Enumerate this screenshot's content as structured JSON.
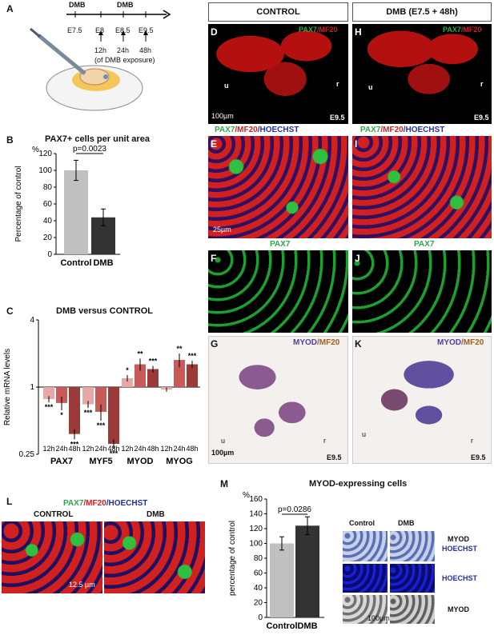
{
  "panel_letters": [
    "A",
    "B",
    "C",
    "D",
    "E",
    "F",
    "G",
    "H",
    "I",
    "J",
    "K",
    "L",
    "M"
  ],
  "timeline": {
    "top": [
      "DMB",
      "DMB"
    ],
    "stages": [
      "E7.5",
      "E8",
      "E8.5",
      "E9.5"
    ],
    "hours": [
      "12h",
      "24h",
      "48h"
    ],
    "note": "(of DMB exposure)"
  },
  "headers": {
    "control": "CONTROL",
    "dmb": "DMB (E7.5 + 48h)"
  },
  "micro": {
    "pax7": "PAX7",
    "mf20": "/MF20",
    "hoechst": "/HOECHST",
    "myod": "MYOD",
    "mf20b": "/MF20",
    "u": "u",
    "r": "r",
    "e95": "E9.5",
    "scale100": "100µm",
    "scale25": "25µm",
    "scale125": "12.5 µm",
    "scale100b": "100µm"
  },
  "panel_L": {
    "control": "CONTROL",
    "dmb": "DMB"
  },
  "panel_M": {
    "title": "MYOD-expressing cells",
    "col1": "Control",
    "col2": "DMB",
    "row1a": "MYOD",
    "row1b": "HOECHST",
    "row2": "HOECHST",
    "row3": "MYOD"
  },
  "colors": {
    "control_bar": "#c0c0c0",
    "dmb_bar": "#333333",
    "pax7": "#2ea84a",
    "mf20": "#d42020",
    "hoechst": "#2030a0"
  },
  "chart_data": [
    {
      "type": "bar",
      "title": "PAX7+ cells per unit area",
      "ylabel": "Percentage of control",
      "yunit": "%",
      "categories": [
        "Control",
        "DMB"
      ],
      "values": [
        100,
        44
      ],
      "errors": [
        12,
        10
      ],
      "ylim": [
        0,
        120
      ],
      "yticks": [
        0,
        20,
        40,
        60,
        80,
        100,
        120
      ],
      "annotation": "p=0.0023"
    },
    {
      "type": "bar",
      "title": "DMB versus CONTROL",
      "ylabel": "Relative mRNA levels",
      "yscale": "log",
      "ylim": [
        0.25,
        4
      ],
      "yticks": [
        0.25,
        1,
        4
      ],
      "groups": [
        "PAX7",
        "MYF5",
        "MYOD",
        "MYOG"
      ],
      "timepoints": [
        "12h",
        "24h",
        "48h"
      ],
      "values": [
        [
          0.78,
          0.72,
          0.38
        ],
        [
          0.7,
          0.6,
          0.31
        ],
        [
          1.2,
          1.6,
          1.45
        ],
        [
          0.95,
          1.75,
          1.6
        ]
      ],
      "errors": [
        [
          0.05,
          0.1,
          0.04
        ],
        [
          0.05,
          0.1,
          0.03
        ],
        [
          0.08,
          0.2,
          0.1
        ],
        [
          0.04,
          0.25,
          0.12
        ]
      ],
      "significance": [
        [
          "***",
          "*",
          "***"
        ],
        [
          "***",
          "***",
          "***"
        ],
        [
          "*",
          "**",
          "***"
        ],
        [
          "",
          "**",
          "***"
        ]
      ],
      "colors": [
        "#e8a8a8",
        "#c85a5a",
        "#9c3a3a"
      ]
    },
    {
      "type": "bar",
      "ylabel": "percentage of control",
      "yunit": "%",
      "categories": [
        "Control",
        "DMB"
      ],
      "values": [
        100,
        124
      ],
      "errors": [
        9,
        12
      ],
      "ylim": [
        0,
        160
      ],
      "yticks": [
        0,
        20,
        40,
        60,
        80,
        100,
        120,
        140,
        160
      ],
      "annotation": "p=0.0286"
    }
  ]
}
